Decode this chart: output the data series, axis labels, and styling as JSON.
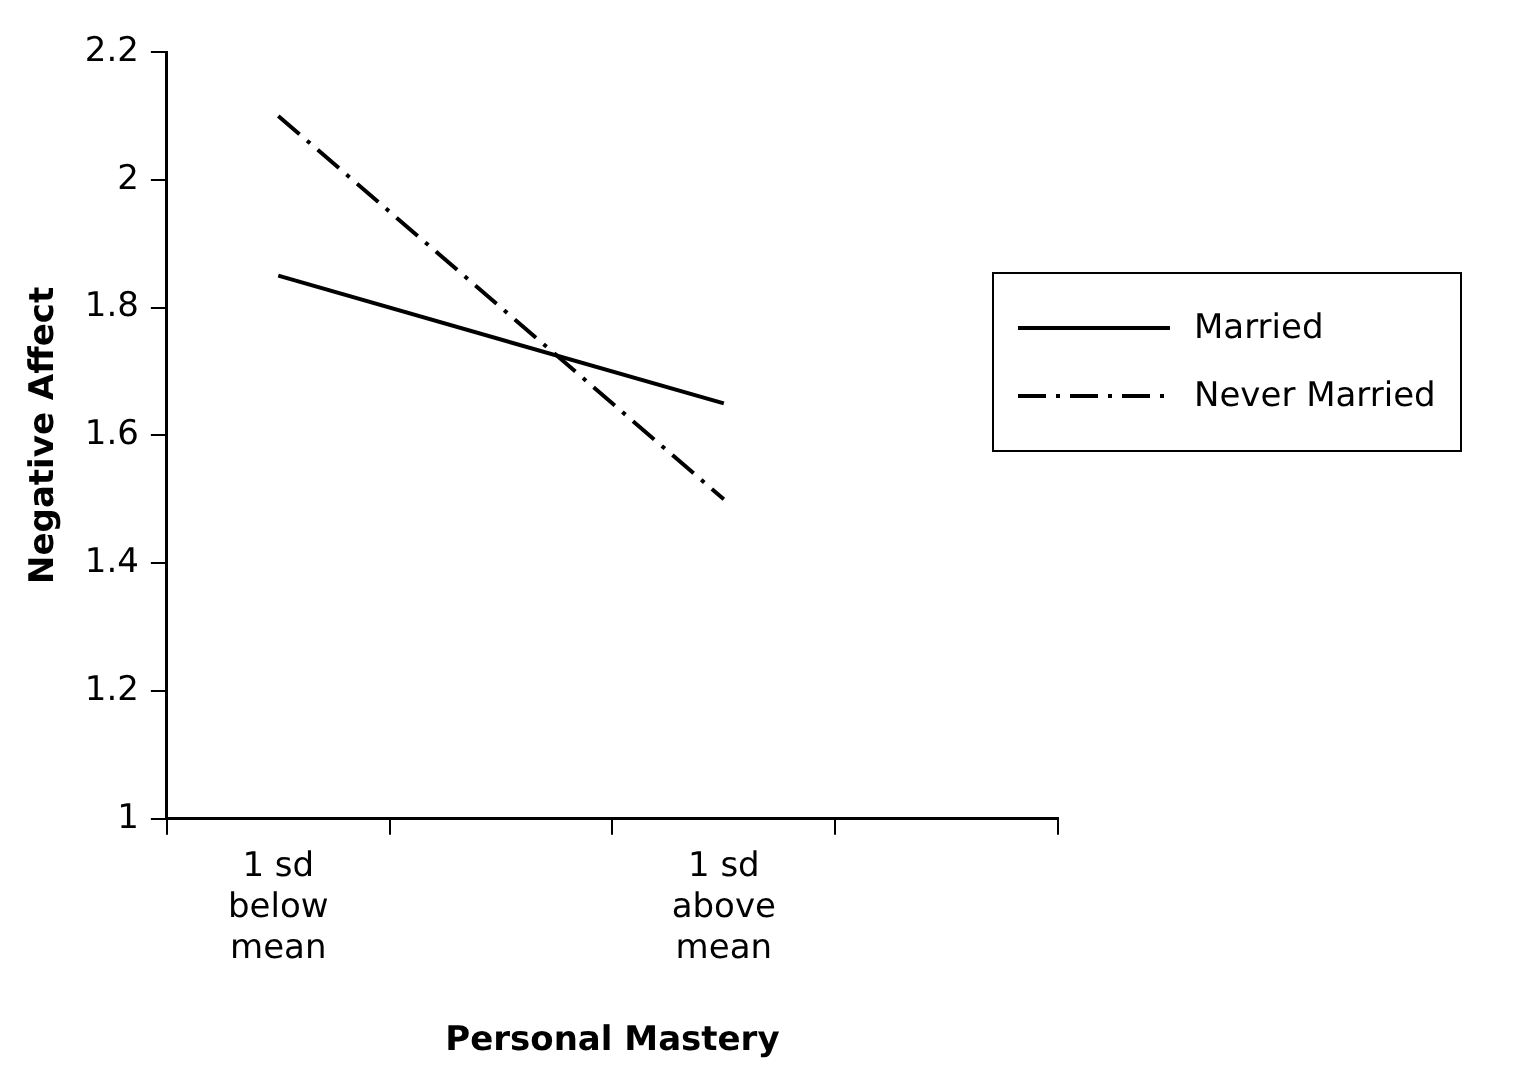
{
  "chart_data": {
    "type": "line",
    "xlabel": "Personal Mastery",
    "ylabel": "Negative Affect",
    "categories": [
      "1 sd\nbelow\nmean",
      null,
      "1 sd\nabove\nmean",
      null
    ],
    "series": [
      {
        "name": "Married",
        "color": "#000000",
        "values": [
          1.85,
          null,
          1.65,
          null
        ],
        "line_style": "solid"
      },
      {
        "name": "Never Married",
        "color": "#000000",
        "values": [
          2.1,
          null,
          1.5,
          null
        ],
        "line_style": "dashdot"
      }
    ],
    "ylim": [
      1,
      2.2
    ],
    "yticks": [
      1,
      1.2,
      1.4,
      1.6,
      1.8,
      2,
      2.2
    ],
    "grid": false,
    "legend": "right",
    "marker": "none"
  }
}
